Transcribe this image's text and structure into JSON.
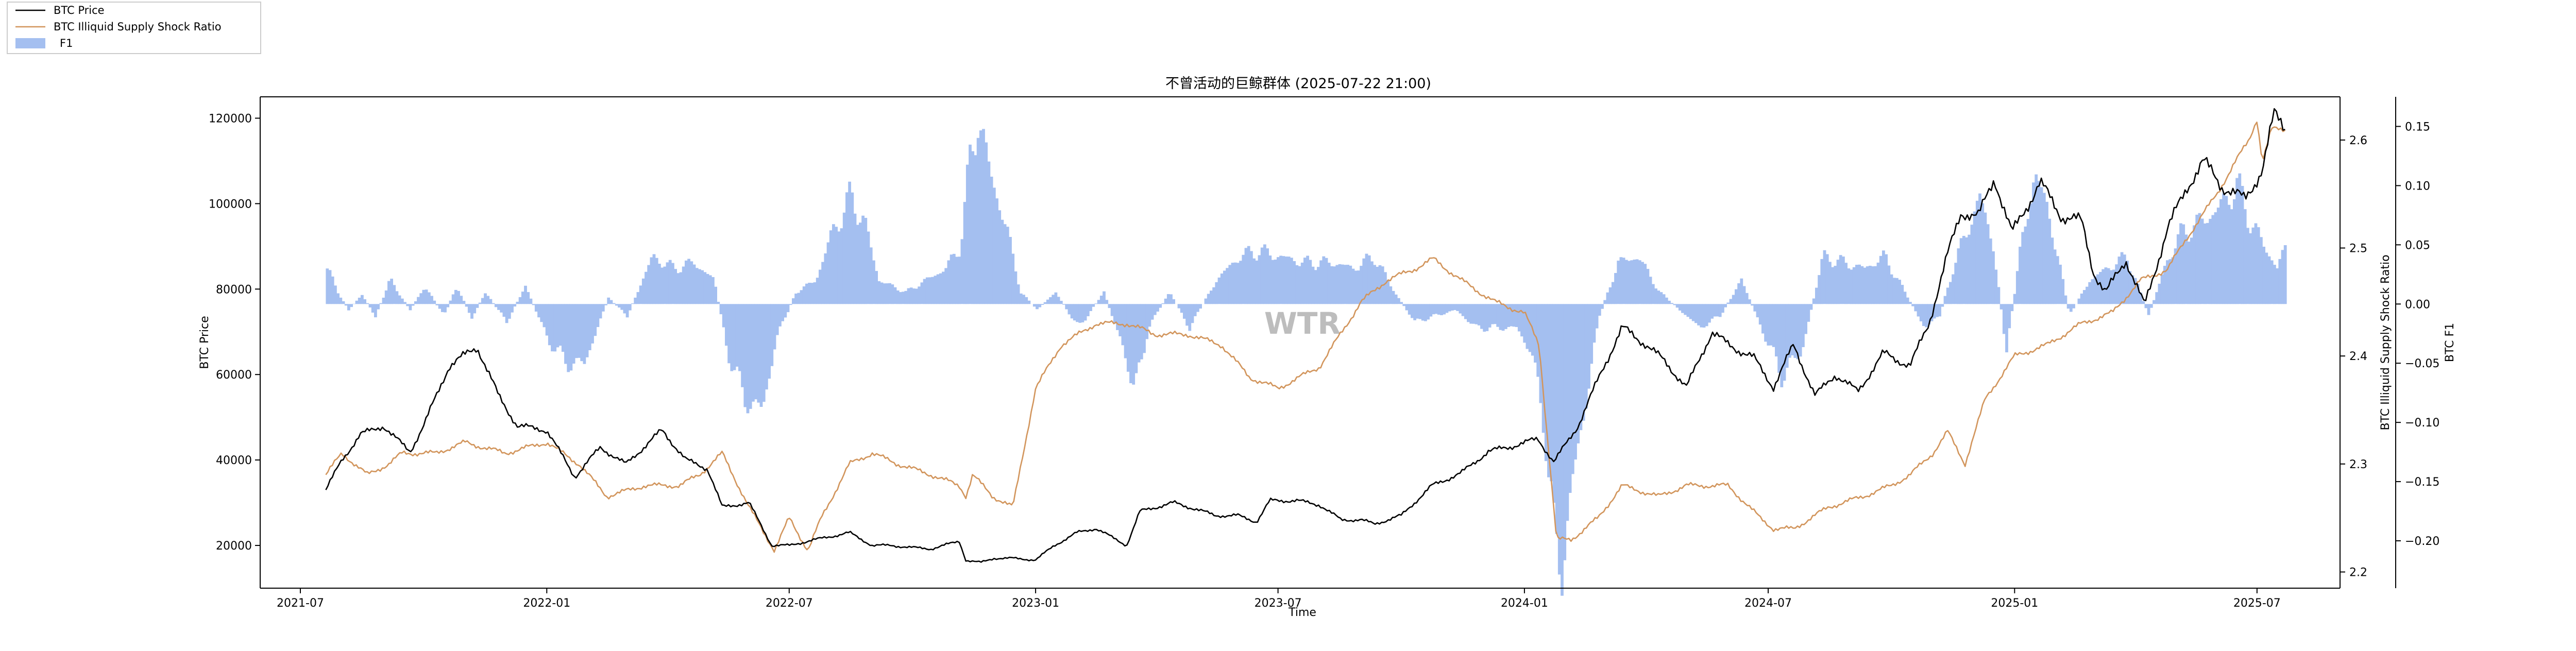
{
  "chart_data": {
    "type": "line",
    "title": "不曾活动的巨鲸群体 (2025-07-22 21:00)",
    "xlabel": "Time",
    "x_ticks": [
      "2021-07",
      "2022-01",
      "2022-07",
      "2023-01",
      "2023-07",
      "2024-01",
      "2024-07",
      "2025-01",
      "2025-07"
    ],
    "x_range": [
      "2021-06-01",
      "2025-09-01"
    ],
    "data_range": [
      "2021-07-20",
      "2025-07-22"
    ],
    "watermark": "WTR",
    "legend": {
      "placement": "top-left",
      "entries": [
        {
          "label": "BTC Price",
          "color": "#000000",
          "kind": "line"
        },
        {
          "label": "BTC Illiquid Supply Shock Ratio",
          "color": "#d2955c",
          "kind": "line"
        },
        {
          "label": "F1",
          "color": "#a4bff0",
          "kind": "patch"
        }
      ]
    },
    "axes": {
      "left": {
        "label": "BTC Price",
        "ylim": [
          10000,
          125000
        ],
        "ticks": [
          "20000",
          "40000",
          "60000",
          "80000",
          "100000",
          "120000"
        ]
      },
      "right1": {
        "label": "BTC Illiquid Supply Shock Ratio",
        "ylim": [
          2.185,
          2.64
        ],
        "ticks": [
          "2.2",
          "2.3",
          "2.4",
          "2.5",
          "2.6"
        ]
      },
      "right2": {
        "label": "BTC F1",
        "ylim": [
          -0.24,
          0.175
        ],
        "ticks": [
          "−0.20",
          "−0.15",
          "−0.10",
          "−0.05",
          "0.00",
          "0.05",
          "0.10",
          "0.15"
        ]
      }
    },
    "series": [
      {
        "name": "BTC Price",
        "axis": "left",
        "color": "#000000",
        "x": [
          "2021-07-20",
          "2021-08-01",
          "2021-08-15",
          "2021-09-01",
          "2021-09-07",
          "2021-09-21",
          "2021-10-01",
          "2021-10-20",
          "2021-11-10",
          "2021-11-26",
          "2021-12-10",
          "2022-01-01",
          "2022-01-22",
          "2022-02-10",
          "2022-03-01",
          "2022-03-28",
          "2022-04-15",
          "2022-05-01",
          "2022-05-12",
          "2022-06-01",
          "2022-06-18",
          "2022-07-01",
          "2022-07-15",
          "2022-08-15",
          "2022-09-01",
          "2022-09-15",
          "2022-10-01",
          "2022-10-15",
          "2022-11-05",
          "2022-11-10",
          "2022-11-21",
          "2022-12-01",
          "2022-12-15",
          "2023-01-01",
          "2023-01-15",
          "2023-02-01",
          "2023-02-15",
          "2023-03-10",
          "2023-03-20",
          "2023-04-14",
          "2023-05-01",
          "2023-05-15",
          "2023-06-01",
          "2023-06-15",
          "2023-06-25",
          "2023-07-15",
          "2023-08-01",
          "2023-08-17",
          "2023-09-01",
          "2023-09-11",
          "2023-10-01",
          "2023-10-24",
          "2023-11-15",
          "2023-12-05",
          "2023-12-20",
          "2024-01-01",
          "2024-01-11",
          "2024-01-23",
          "2024-02-10",
          "2024-02-28",
          "2024-03-14",
          "2024-04-01",
          "2024-04-15",
          "2024-05-01",
          "2024-05-20",
          "2024-06-01",
          "2024-06-20",
          "2024-07-05",
          "2024-07-20",
          "2024-08-05",
          "2024-08-20",
          "2024-09-06",
          "2024-09-25",
          "2024-10-15",
          "2024-10-29",
          "2024-11-12",
          "2024-11-22",
          "2024-12-05",
          "2024-12-17",
          "2024-12-30",
          "2025-01-20",
          "2025-02-05",
          "2025-02-20",
          "2025-03-01",
          "2025-03-10",
          "2025-03-25",
          "2025-04-08",
          "2025-04-25",
          "2025-05-10",
          "2025-05-22",
          "2025-06-05",
          "2025-06-22",
          "2025-07-05",
          "2025-07-14",
          "2025-07-22"
        ],
        "y": [
          33000,
          40000,
          46000,
          48000,
          46000,
          42000,
          48000,
          62000,
          66500,
          55000,
          48000,
          47000,
          36000,
          43000,
          39000,
          47000,
          40000,
          38000,
          29000,
          30000,
          20000,
          20000,
          21000,
          23000,
          20000,
          20000,
          19500,
          19200,
          21000,
          16500,
          16000,
          17000,
          17000,
          16600,
          20000,
          23000,
          24000,
          20000,
          28000,
          30000,
          28500,
          27000,
          27000,
          25500,
          30500,
          30500,
          29500,
          26000,
          26000,
          25000,
          27000,
          34000,
          37000,
          42000,
          43000,
          44000,
          45000,
          39500,
          48000,
          61000,
          71000,
          67000,
          63000,
          57000,
          70000,
          67000,
          64000,
          57000,
          67000,
          55000,
          60000,
          56000,
          65000,
          62000,
          72000,
          88000,
          98000,
          97000,
          106000,
          93000,
          105000,
          97000,
          96000,
          84000,
          79000,
          87000,
          76000,
          94000,
          104000,
          110000,
          104000,
          101000,
          108000,
          121000,
          118000
        ]
      },
      {
        "name": "BTC Illiquid Supply Shock Ratio",
        "axis": "right1",
        "color": "#d2955c",
        "x": [
          "2021-07-20",
          "2021-08-01",
          "2021-08-20",
          "2021-09-05",
          "2021-09-15",
          "2021-10-10",
          "2021-11-01",
          "2021-12-01",
          "2022-01-01",
          "2022-01-25",
          "2022-02-15",
          "2022-03-15",
          "2022-04-10",
          "2022-04-25",
          "2022-05-12",
          "2022-06-01",
          "2022-06-20",
          "2022-07-01",
          "2022-07-15",
          "2022-07-25",
          "2022-08-15",
          "2022-09-01",
          "2022-09-20",
          "2022-10-15",
          "2022-11-05",
          "2022-11-10",
          "2022-11-15",
          "2022-11-30",
          "2022-12-15",
          "2023-01-01",
          "2023-01-20",
          "2023-02-15",
          "2023-03-10",
          "2023-04-01",
          "2023-04-25",
          "2023-05-20",
          "2023-06-10",
          "2023-07-01",
          "2023-08-01",
          "2023-09-01",
          "2023-09-20",
          "2023-10-10",
          "2023-10-25",
          "2023-11-15",
          "2023-12-10",
          "2024-01-01",
          "2024-01-12",
          "2024-01-20",
          "2024-01-25",
          "2024-02-05",
          "2024-02-25",
          "2024-03-14",
          "2024-04-10",
          "2024-05-01",
          "2024-06-01",
          "2024-06-25",
          "2024-07-05",
          "2024-07-20",
          "2024-08-15",
          "2024-09-10",
          "2024-10-01",
          "2024-10-15",
          "2024-11-01",
          "2024-11-12",
          "2024-11-25",
          "2024-12-10",
          "2025-01-01",
          "2025-01-25",
          "2025-02-20",
          "2025-03-15",
          "2025-04-05",
          "2025-04-25",
          "2025-05-10",
          "2025-06-01",
          "2025-06-15",
          "2025-06-25",
          "2025-07-01",
          "2025-07-05",
          "2025-07-12",
          "2025-07-22"
        ],
        "y": [
          2.29,
          2.31,
          2.29,
          2.3,
          2.31,
          2.31,
          2.32,
          2.31,
          2.32,
          2.3,
          2.27,
          2.28,
          2.28,
          2.29,
          2.31,
          2.26,
          2.22,
          2.25,
          2.22,
          2.25,
          2.3,
          2.31,
          2.3,
          2.29,
          2.28,
          2.27,
          2.29,
          2.27,
          2.26,
          2.37,
          2.41,
          2.43,
          2.43,
          2.42,
          2.42,
          2.41,
          2.38,
          2.37,
          2.39,
          2.45,
          2.47,
          2.48,
          2.49,
          2.47,
          2.45,
          2.44,
          2.41,
          2.3,
          2.23,
          2.23,
          2.25,
          2.28,
          2.27,
          2.28,
          2.28,
          2.25,
          2.24,
          2.24,
          2.26,
          2.27,
          2.28,
          2.29,
          2.31,
          2.33,
          2.3,
          2.36,
          2.4,
          2.41,
          2.43,
          2.44,
          2.47,
          2.48,
          2.51,
          2.55,
          2.58,
          2.6,
          2.62,
          2.58,
          2.61,
          2.61
        ]
      },
      {
        "name": "F1",
        "axis": "right2",
        "color": "#a4bff0",
        "kind": "fill",
        "x": [
          "2021-07-20",
          "2021-07-28",
          "2021-08-05",
          "2021-08-15",
          "2021-08-25",
          "2021-09-05",
          "2021-09-20",
          "2021-10-01",
          "2021-10-15",
          "2021-10-25",
          "2021-11-05",
          "2021-11-15",
          "2021-12-01",
          "2021-12-15",
          "2022-01-01",
          "2022-01-15",
          "2022-01-28",
          "2022-02-15",
          "2022-03-01",
          "2022-03-20",
          "2022-04-05",
          "2022-04-20",
          "2022-05-05",
          "2022-05-15",
          "2022-05-28",
          "2022-06-10",
          "2022-06-20",
          "2022-07-05",
          "2022-07-20",
          "2022-08-01",
          "2022-08-15",
          "2022-08-25",
          "2022-09-05",
          "2022-09-25",
          "2022-10-10",
          "2022-10-25",
          "2022-11-05",
          "2022-11-12",
          "2022-11-18",
          "2022-11-25",
          "2022-12-10",
          "2022-12-20",
          "2023-01-01",
          "2023-01-15",
          "2023-02-01",
          "2023-02-20",
          "2023-03-10",
          "2023-03-15",
          "2023-03-25",
          "2023-04-10",
          "2023-04-25",
          "2023-05-15",
          "2023-06-01",
          "2023-06-15",
          "2023-07-01",
          "2023-07-20",
          "2023-08-10",
          "2023-08-25",
          "2023-09-10",
          "2023-09-25",
          "2023-10-10",
          "2023-10-25",
          "2023-11-10",
          "2023-11-25",
          "2023-12-10",
          "2023-12-25",
          "2024-01-05",
          "2024-01-15",
          "2024-01-22",
          "2024-01-28",
          "2024-02-05",
          "2024-02-15",
          "2024-02-25",
          "2024-03-10",
          "2024-03-25",
          "2024-04-10",
          "2024-04-25",
          "2024-05-10",
          "2024-05-25",
          "2024-06-10",
          "2024-06-25",
          "2024-07-10",
          "2024-07-25",
          "2024-08-10",
          "2024-08-25",
          "2024-09-10",
          "2024-09-25",
          "2024-10-10",
          "2024-10-25",
          "2024-11-05",
          "2024-11-15",
          "2024-11-25",
          "2024-12-05",
          "2024-12-15",
          "2024-12-25",
          "2025-01-05",
          "2025-01-15",
          "2025-01-25",
          "2025-02-10",
          "2025-02-25",
          "2025-03-10",
          "2025-03-25",
          "2025-04-10",
          "2025-04-25",
          "2025-05-05",
          "2025-05-20",
          "2025-06-01",
          "2025-06-15",
          "2025-06-25",
          "2025-07-05",
          "2025-07-15",
          "2025-07-22"
        ],
        "y": [
          0.03,
          0.01,
          -0.005,
          0.008,
          -0.01,
          0.02,
          -0.005,
          0.015,
          -0.01,
          0.015,
          -0.012,
          0.01,
          -0.015,
          0.015,
          -0.03,
          -0.05,
          -0.05,
          0.005,
          -0.01,
          0.04,
          0.03,
          0.035,
          0.02,
          -0.04,
          -0.08,
          -0.09,
          -0.03,
          0.01,
          0.02,
          0.06,
          0.09,
          0.07,
          0.02,
          0.01,
          0.02,
          0.03,
          0.05,
          0.12,
          0.16,
          0.12,
          0.06,
          0.01,
          -0.005,
          0.01,
          -0.02,
          0.01,
          -0.05,
          -0.075,
          -0.02,
          0.01,
          -0.02,
          0.02,
          0.04,
          0.045,
          0.04,
          0.035,
          0.035,
          0.03,
          0.04,
          0.01,
          -0.015,
          -0.01,
          -0.005,
          -0.02,
          -0.02,
          -0.02,
          -0.04,
          -0.1,
          -0.2,
          -0.22,
          -0.15,
          -0.08,
          -0.01,
          0.035,
          0.04,
          0.01,
          -0.005,
          -0.02,
          -0.01,
          0.02,
          -0.02,
          -0.06,
          -0.04,
          0.04,
          0.035,
          0.03,
          0.04,
          0.01,
          -0.02,
          -0.01,
          0.03,
          0.06,
          0.09,
          0.05,
          -0.04,
          0.05,
          0.11,
          0.08,
          -0.01,
          0.02,
          0.03,
          0.04,
          -0.01,
          0.04,
          0.06,
          0.07,
          0.08,
          0.1,
          0.07,
          0.05,
          0.03,
          0.05
        ]
      }
    ]
  }
}
